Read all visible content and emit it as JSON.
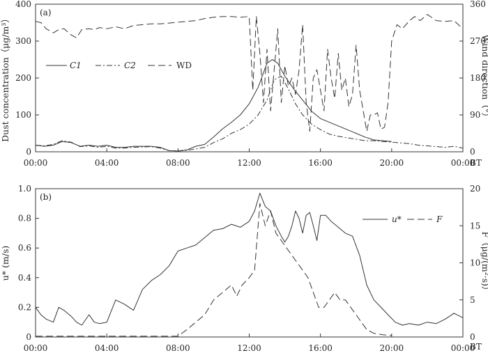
{
  "chart_data": [
    {
      "type": "line",
      "panel_label": "(a)",
      "x_tick_labels": [
        "00:00",
        "04:00",
        "08:00",
        "12:00",
        "16:00",
        "20:00",
        "00:00"
      ],
      "x_unit": "BT",
      "xlim": [
        0,
        24
      ],
      "ylabel_left": "Dust concentration（μg/m³）",
      "ylabel_right": "Wind direction（°）",
      "ylim_left": [
        0,
        400
      ],
      "ylim_right": [
        0,
        360
      ],
      "yticks_left": [
        "0",
        "100",
        "200",
        "300",
        "400"
      ],
      "yticks_right": [
        "0",
        "90",
        "180",
        "270",
        "360"
      ],
      "legend": {
        "placement": "middle-left",
        "labels": [
          "C1",
          "C2",
          "WD"
        ]
      },
      "series": [
        {
          "name": "C1",
          "axis": "left",
          "x": [
            0,
            0.5,
            1,
            1.5,
            2,
            2.5,
            3,
            3.5,
            4,
            4.5,
            5,
            5.5,
            6,
            6.5,
            7,
            7.5,
            8,
            8.5,
            9,
            9.5,
            10,
            10.5,
            11,
            11.5,
            12,
            12.5,
            13,
            13.3,
            13.6,
            14,
            14.5,
            15,
            15.5,
            16,
            16.5,
            17,
            17.5,
            18,
            18.5,
            19,
            19.5,
            20
          ],
          "values": [
            18,
            15,
            18,
            28,
            25,
            15,
            18,
            15,
            18,
            12,
            12,
            15,
            15,
            15,
            12,
            3,
            2,
            5,
            15,
            20,
            40,
            62,
            80,
            100,
            130,
            175,
            240,
            250,
            240,
            205,
            170,
            140,
            110,
            90,
            80,
            70,
            60,
            50,
            40,
            32,
            30,
            28
          ]
        },
        {
          "name": "C2",
          "axis": "left",
          "x": [
            0,
            0.5,
            1,
            1.5,
            2,
            2.5,
            3,
            3.5,
            4,
            4.5,
            5,
            5.5,
            6,
            6.5,
            7,
            7.5,
            8,
            8.5,
            9,
            9.5,
            10,
            10.5,
            11,
            11.5,
            12,
            12.5,
            13,
            13.4,
            13.8,
            14.2,
            14.6,
            15,
            15.5,
            16,
            16.5,
            17,
            17.5,
            18,
            18.5,
            19,
            19.5,
            20,
            20.5,
            21,
            21.5,
            22,
            22.5,
            23,
            23.5,
            24
          ],
          "values": [
            18,
            16,
            20,
            30,
            26,
            14,
            16,
            12,
            15,
            10,
            10,
            12,
            13,
            14,
            10,
            3,
            2,
            4,
            8,
            12,
            25,
            35,
            50,
            60,
            75,
            100,
            140,
            195,
            205,
            170,
            130,
            100,
            75,
            60,
            48,
            42,
            38,
            34,
            30,
            30,
            28,
            26,
            24,
            22,
            18,
            16,
            14,
            12,
            15,
            10
          ]
        },
        {
          "name": "WD",
          "axis": "right",
          "x": [
            0,
            0.3,
            0.6,
            1,
            1.3,
            1.6,
            2,
            2.3,
            2.6,
            3,
            3.3,
            3.6,
            4,
            4.5,
            5,
            5.5,
            6,
            6.5,
            7,
            7.5,
            8,
            8.5,
            9,
            9.5,
            10,
            10.5,
            11,
            11.5,
            12,
            12.2,
            12.4,
            12.6,
            12.8,
            13,
            13.2,
            13.4,
            13.6,
            13.8,
            14,
            14.2,
            14.4,
            14.6,
            14.8,
            15,
            15.2,
            15.4,
            15.6,
            15.8,
            16,
            16.2,
            16.4,
            16.6,
            16.8,
            17,
            17.2,
            17.4,
            17.6,
            17.8,
            18,
            18.2,
            18.4,
            18.6,
            18.8,
            19,
            19.2,
            19.4,
            19.6,
            19.8,
            20,
            20.3,
            20.6,
            21,
            21.3,
            21.6,
            22,
            22.5,
            23,
            23.5,
            24
          ],
          "values": [
            318,
            315,
            300,
            290,
            298,
            300,
            285,
            278,
            298,
            300,
            298,
            303,
            300,
            305,
            300,
            308,
            310,
            312,
            312,
            314,
            316,
            318,
            320,
            325,
            328,
            330,
            330,
            328,
            330,
            150,
            330,
            240,
            120,
            250,
            100,
            200,
            300,
            120,
            210,
            160,
            180,
            140,
            200,
            310,
            120,
            50,
            180,
            200,
            150,
            100,
            250,
            180,
            130,
            240,
            150,
            180,
            110,
            140,
            260,
            150,
            100,
            50,
            90,
            90,
            95,
            55,
            60,
            120,
            270,
            310,
            300,
            320,
            330,
            320,
            335,
            320,
            318,
            320,
            300
          ]
        }
      ]
    },
    {
      "type": "line",
      "panel_label": "(b)",
      "x_tick_labels": [
        "00:00",
        "04:00",
        "08:00",
        "12:00",
        "16:00",
        "20:00",
        "00:00"
      ],
      "x_unit": "BT",
      "xlim": [
        0,
        24
      ],
      "ylabel_left": "u* (m/s)",
      "ylabel_right": "F（μg/(m²·s)）",
      "ylim_left": [
        0,
        1.0
      ],
      "ylim_right": [
        0,
        20
      ],
      "yticks_left": [
        "0",
        "0.2",
        "0.4",
        "0.6",
        "0.8",
        "1.0"
      ],
      "yticks_right": [
        "0",
        "5",
        "10",
        "15",
        "20"
      ],
      "legend": {
        "placement": "top-right",
        "labels": [
          "u*",
          "F"
        ]
      },
      "series": [
        {
          "name": "u*",
          "axis": "left",
          "x": [
            0,
            0.3,
            0.6,
            1,
            1.3,
            1.6,
            2,
            2.3,
            2.6,
            3,
            3.3,
            3.6,
            4,
            4.5,
            5,
            5.5,
            6,
            6.5,
            7,
            7.5,
            8,
            8.5,
            9,
            9.5,
            10,
            10.5,
            11,
            11.5,
            12,
            12.3,
            12.6,
            12.9,
            13.2,
            13.5,
            13.8,
            14,
            14.2,
            14.4,
            14.6,
            14.8,
            15,
            15.2,
            15.4,
            15.6,
            15.8,
            16,
            16.3,
            16.6,
            17,
            17.4,
            17.8,
            18.2,
            18.6,
            19,
            19.4,
            19.8,
            20.2,
            20.6,
            21,
            21.5,
            22,
            22.5,
            23,
            23.5,
            24
          ],
          "values": [
            0.2,
            0.15,
            0.12,
            0.1,
            0.2,
            0.18,
            0.14,
            0.1,
            0.08,
            0.15,
            0.1,
            0.09,
            0.1,
            0.25,
            0.22,
            0.18,
            0.32,
            0.38,
            0.42,
            0.48,
            0.58,
            0.6,
            0.62,
            0.67,
            0.72,
            0.73,
            0.76,
            0.74,
            0.78,
            0.85,
            0.97,
            0.88,
            0.85,
            0.75,
            0.68,
            0.64,
            0.68,
            0.75,
            0.85,
            0.8,
            0.7,
            0.82,
            0.84,
            0.75,
            0.65,
            0.82,
            0.82,
            0.78,
            0.74,
            0.7,
            0.68,
            0.55,
            0.35,
            0.25,
            0.2,
            0.15,
            0.1,
            0.08,
            0.09,
            0.08,
            0.1,
            0.09,
            0.12,
            0.16,
            0.13
          ]
        },
        {
          "name": "F",
          "axis": "right",
          "x": [
            0,
            0.5,
            1,
            1.5,
            2,
            2.5,
            3,
            3.5,
            4,
            4.5,
            5,
            5.5,
            6,
            6.5,
            7,
            7.5,
            8,
            8.5,
            9,
            9.5,
            10,
            10.5,
            11,
            11.3,
            11.6,
            12,
            12.3,
            12.6,
            12.9,
            13.2,
            13.5,
            13.8,
            14.1,
            14.4,
            14.7,
            15,
            15.3,
            15.6,
            15.9,
            16.2,
            16.5,
            16.8,
            17.1,
            17.4,
            17.7,
            18,
            18.3,
            18.6,
            19,
            19.5,
            20
          ],
          "values": [
            0.1,
            0.1,
            0.1,
            0.1,
            0.1,
            0.1,
            0.1,
            0.1,
            0.1,
            0.1,
            0.1,
            0.1,
            0.1,
            0.1,
            0.1,
            0.1,
            0.1,
            1,
            2,
            3,
            5,
            6,
            7,
            5.5,
            7,
            8,
            9,
            18,
            15,
            17,
            14,
            13,
            12,
            11,
            10,
            9,
            8,
            6,
            4,
            4,
            5,
            6,
            5,
            5,
            4,
            3,
            2,
            1,
            0.5,
            0.3,
            0.2
          ]
        }
      ]
    }
  ]
}
